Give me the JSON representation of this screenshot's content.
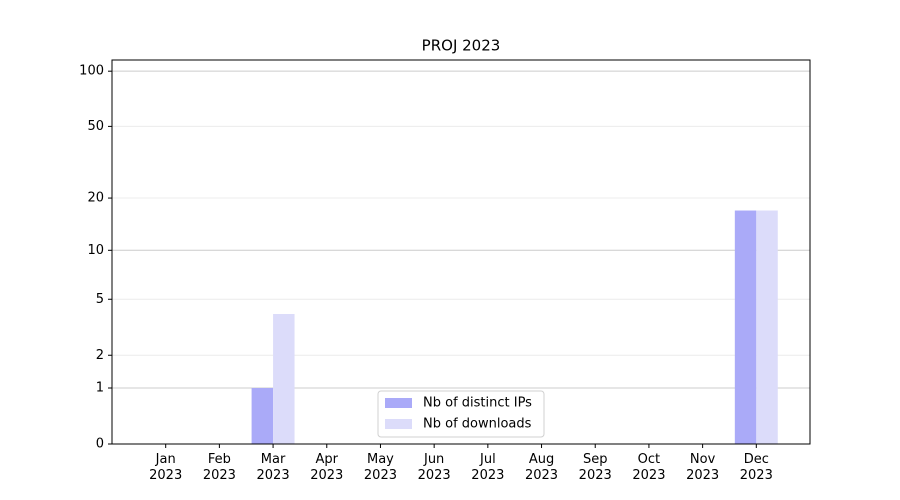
{
  "chart_data": {
    "type": "bar",
    "title": "PROJ 2023",
    "categories": [
      "Jan\n2023",
      "Feb\n2023",
      "Mar\n2023",
      "Apr\n2023",
      "May\n2023",
      "Jun\n2023",
      "Jul\n2023",
      "Aug\n2023",
      "Sep\n2023",
      "Oct\n2023",
      "Nov\n2023",
      "Dec\n2023"
    ],
    "series": [
      {
        "name": "Nb of distinct IPs",
        "color": "#aaaaf8",
        "values": [
          0,
          0,
          1,
          0,
          0,
          0,
          0,
          0,
          0,
          0,
          0,
          17
        ]
      },
      {
        "name": "Nb of downloads",
        "color": "#dcdcfa",
        "values": [
          0,
          0,
          4,
          0,
          0,
          0,
          0,
          0,
          0,
          0,
          0,
          17
        ]
      }
    ],
    "yscale": "log1p",
    "ylim": [
      0,
      115
    ],
    "yticks": [
      0,
      1,
      2,
      5,
      10,
      20,
      50,
      100
    ],
    "grid": true,
    "legend": "lower center"
  }
}
